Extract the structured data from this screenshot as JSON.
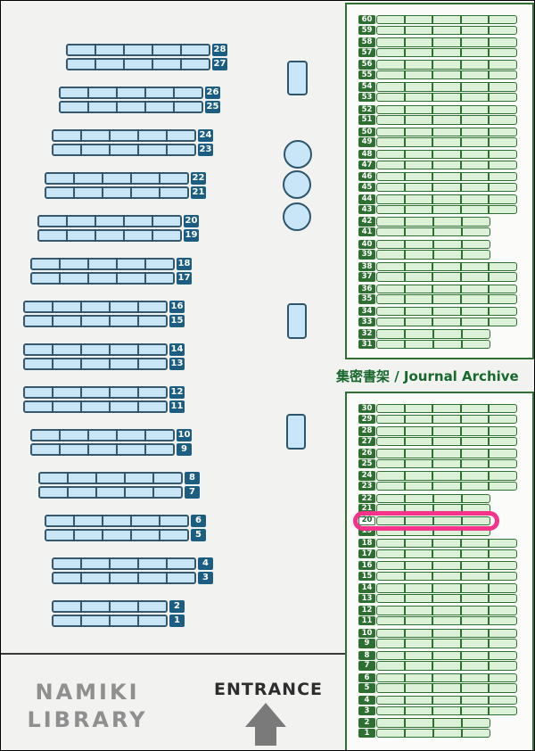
{
  "library": {
    "name_line1": "NAMIKI",
    "name_line2": "LIBRARY"
  },
  "entrance": {
    "label": "ENTRANCE",
    "arrow_icon": "up-arrow"
  },
  "archive": {
    "section_label": "集密書架 / Journal Archive",
    "long_segments": 5,
    "short_segments": 4,
    "top_section": {
      "rows": [
        60,
        59,
        58,
        57,
        56,
        55,
        54,
        53,
        52,
        51,
        50,
        49,
        48,
        47,
        46,
        45,
        44,
        43,
        42,
        41,
        40,
        39,
        38,
        37,
        36,
        35,
        34,
        33,
        32,
        31
      ],
      "short_rows": [
        42,
        41,
        40,
        39,
        32,
        31
      ]
    },
    "bottom_section": {
      "rows": [
        30,
        29,
        28,
        27,
        26,
        25,
        24,
        23,
        22,
        21,
        20,
        19,
        18,
        17,
        16,
        15,
        14,
        13,
        12,
        11,
        10,
        9,
        8,
        7,
        6,
        5,
        4,
        3,
        2,
        1
      ],
      "short_rows": [
        22,
        21,
        20,
        19,
        2,
        1
      ],
      "highlighted_row": 20
    }
  },
  "bookshelves": {
    "pairs": [
      {
        "top_label": "28",
        "bottom_label": "27",
        "segments": 5
      },
      {
        "top_label": "26",
        "bottom_label": "25",
        "segments": 5
      },
      {
        "top_label": "24",
        "bottom_label": "23",
        "segments": 5
      },
      {
        "top_label": "22",
        "bottom_label": "21",
        "segments": 5
      },
      {
        "top_label": "20",
        "bottom_label": "19",
        "segments": 5
      },
      {
        "top_label": "18",
        "bottom_label": "17",
        "segments": 5
      },
      {
        "top_label": "16",
        "bottom_label": "15",
        "segments": 5
      },
      {
        "top_label": "14",
        "bottom_label": "13",
        "segments": 5
      },
      {
        "top_label": "12",
        "bottom_label": "11",
        "segments": 5
      },
      {
        "top_label": "10",
        "bottom_label": "9",
        "segments": 5
      },
      {
        "top_label": "8",
        "bottom_label": "7",
        "segments": 5
      },
      {
        "top_label": "6",
        "bottom_label": "5",
        "segments": 5
      },
      {
        "top_label": "4",
        "bottom_label": "3",
        "segments": 5
      },
      {
        "top_label": "2",
        "bottom_label": "1",
        "segments": 4
      }
    ]
  },
  "colors": {
    "blue_shelf_fill": "#c9e6f8",
    "blue_shelf_border": "#35596b",
    "blue_label_bg": "#1b5e82",
    "green_dark": "#2e7031",
    "green_fill": "#ddf0d8",
    "archive_text": "#17682b",
    "highlight_pink": "#f5338b",
    "library_text_gray": "#8f8f8f",
    "entrance_text": "#2d2d2d",
    "arrow_gray": "#7a7a7a",
    "background": "#f2f2f1"
  }
}
